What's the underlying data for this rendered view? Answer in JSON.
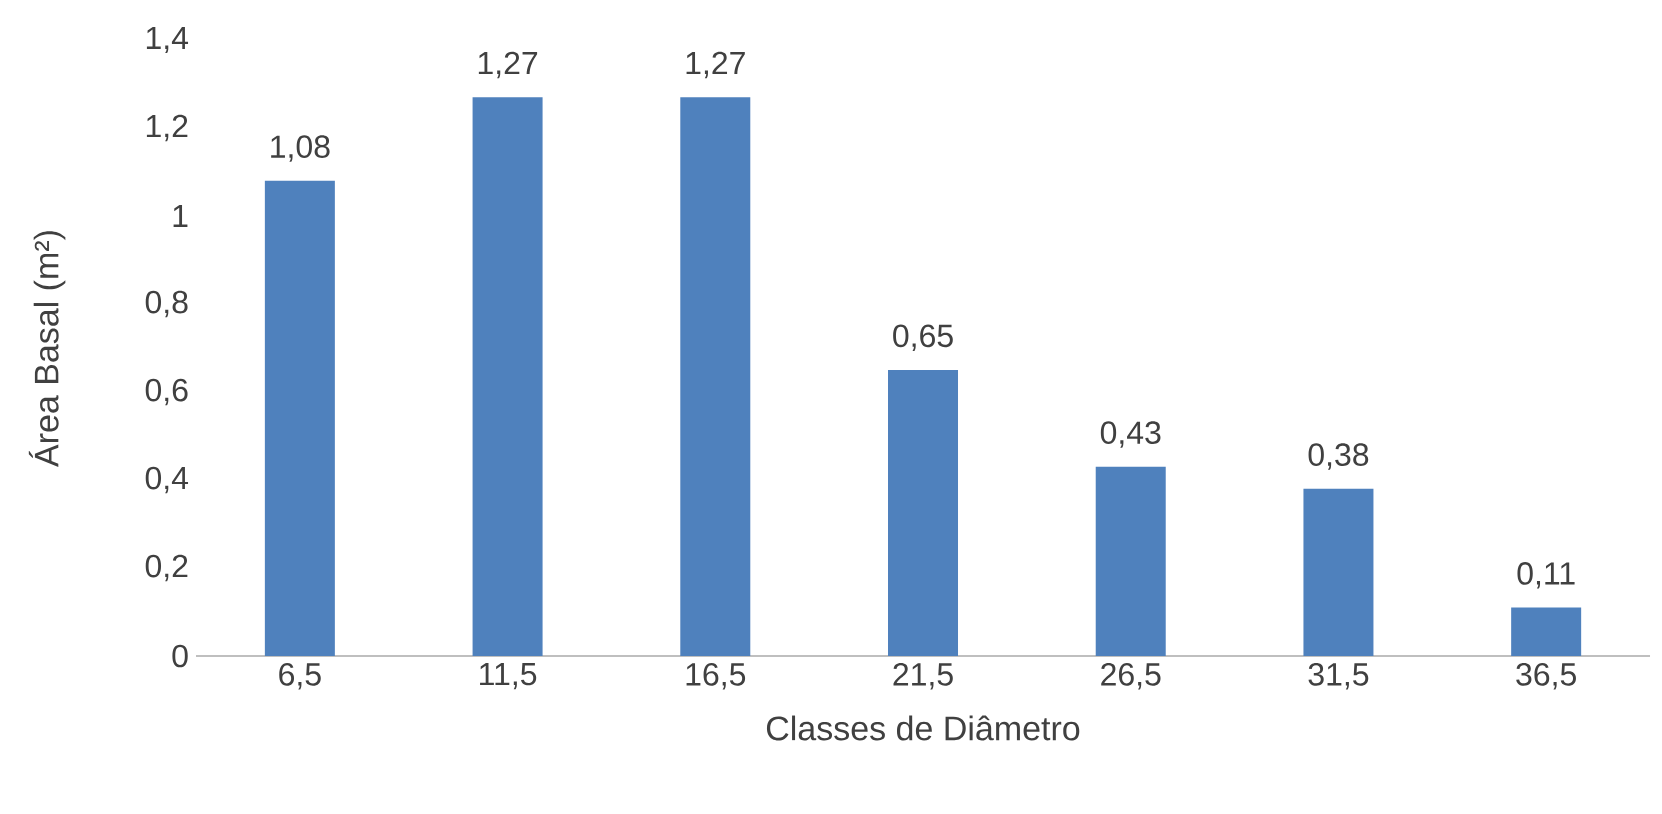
{
  "chart_data": {
    "type": "bar",
    "xlabel": "Classes de Diâmetro",
    "ylabel": "Área Basal (m²)",
    "categories": [
      "6,5",
      "11,5",
      "16,5",
      "21,5",
      "26,5",
      "31,5",
      "36,5"
    ],
    "values": [
      1.08,
      1.27,
      1.27,
      0.65,
      0.43,
      0.38,
      0.11
    ],
    "value_labels": [
      "1,08",
      "1,27",
      "1,27",
      "0,65",
      "0,43",
      "0,38",
      "0,11"
    ],
    "color": "#4f81bd",
    "ylim": [
      0,
      1.4
    ],
    "yticks": [
      0,
      {
        "value": 0.2,
        "label": "0,2"
      },
      {
        "value": 0.4,
        "label": "0,4"
      },
      {
        "value": 0.6,
        "label": "0,6"
      },
      {
        "value": 0.8,
        "label": "0,8"
      },
      1,
      {
        "value": 1.2,
        "label": "1,2"
      },
      {
        "value": 1.4,
        "label": "1,4"
      }
    ],
    "grid": false
  }
}
